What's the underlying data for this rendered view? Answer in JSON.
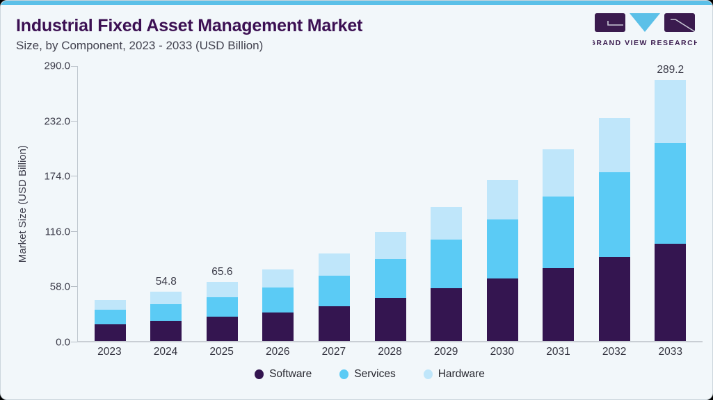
{
  "header": {
    "title": "Industrial Fixed Asset Management Market",
    "subtitle": "Size, by Component, 2023 - 2033 (USD Billion)"
  },
  "logo": {
    "text": "GRAND VIEW RESEARCH",
    "purple": "#3a1b4e",
    "blue": "#5bc0e8"
  },
  "accent_bar_color": "#5bc0e8",
  "chart_data": {
    "type": "bar",
    "stacked": true,
    "title": "Industrial Fixed Asset Management Market Size, by Component, 2023 - 2033 (USD Billion)",
    "xlabel": "",
    "ylabel": "Market Size (USD Billion)",
    "ylim": [
      0,
      290
    ],
    "ytick_labels": [
      "0.0",
      "58.0",
      "116.0",
      "174.0",
      "232.0",
      "290.0"
    ],
    "grid": false,
    "legend_position": "bottom",
    "categories": [
      "2023",
      "2024",
      "2025",
      "2026",
      "2027",
      "2028",
      "2029",
      "2030",
      "2031",
      "2032",
      "2033"
    ],
    "series": [
      {
        "name": "Software",
        "color": "#341550",
        "values": [
          18.7,
          22.5,
          26.8,
          31.3,
          38.5,
          47.9,
          58.5,
          69.2,
          80.8,
          93.1,
          107.7
        ]
      },
      {
        "name": "Services",
        "color": "#5bcbf5",
        "values": [
          15.9,
          18.0,
          22.1,
          28.2,
          34.1,
          43.1,
          53.8,
          65.6,
          79.5,
          93.6,
          111.5
        ]
      },
      {
        "name": "Hardware",
        "color": "#bfe6fa",
        "values": [
          11.0,
          14.3,
          16.7,
          19.5,
          24.4,
          30.0,
          36.4,
          43.8,
          52.1,
          60.5,
          70.0
        ]
      }
    ],
    "totals": [
      45.6,
      54.8,
      65.6,
      79.0,
      97.0,
      121.0,
      148.7,
      178.6,
      212.4,
      247.2,
      289.2
    ],
    "bar_labels": [
      "",
      "54.8",
      "65.6",
      "",
      "",
      "",
      "",
      "",
      "",
      "",
      "289.2"
    ]
  }
}
